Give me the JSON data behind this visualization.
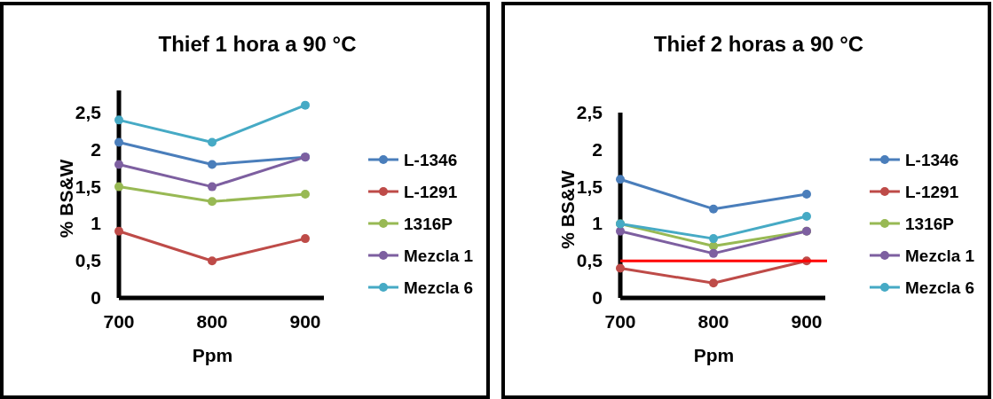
{
  "chart_data": [
    {
      "type": "line",
      "title": "Thief  1 hora  a 90 °C",
      "xlabel": "Ppm",
      "ylabel": "% BS&W",
      "x": [
        700,
        800,
        900
      ],
      "xlim": [
        700,
        920
      ],
      "xticks": [
        700,
        800,
        900
      ],
      "ylim": [
        0,
        2.8
      ],
      "yticks": [
        0,
        {
          "value": 0.5,
          "label": "0,5"
        },
        1,
        {
          "value": 1.5,
          "label": "1,5"
        },
        2,
        {
          "value": 2.5,
          "label": "2,5"
        }
      ],
      "marker": "circle",
      "legend": "right",
      "series": [
        {
          "name": "L-1346",
          "color": "#4a7ebb",
          "values": [
            2.1,
            1.8,
            1.9
          ]
        },
        {
          "name": "L-1291",
          "color": "#be4b48",
          "values": [
            0.9,
            0.5,
            0.8
          ]
        },
        {
          "name": "1316P",
          "color": "#98b954",
          "values": [
            1.5,
            1.3,
            1.4
          ]
        },
        {
          "name": "Mezcla 1",
          "color": "#7d5fa0",
          "values": [
            1.8,
            1.5,
            1.9
          ]
        },
        {
          "name": "Mezcla 6",
          "color": "#46aac5",
          "values": [
            2.4,
            2.1,
            2.6
          ]
        }
      ]
    },
    {
      "type": "line",
      "title": "Thief  2 horas  a 90 °C",
      "xlabel": "Ppm",
      "ylabel": "% BS&W",
      "x": [
        700,
        800,
        900
      ],
      "xlim": [
        700,
        920
      ],
      "xticks": [
        700,
        800,
        900
      ],
      "ylim": [
        0,
        2.5
      ],
      "yticks": [
        0,
        {
          "value": 0.5,
          "label": "0,5"
        },
        1,
        {
          "value": 1.5,
          "label": "1,5"
        },
        2,
        {
          "value": 2.5,
          "label": "2,5"
        }
      ],
      "marker": "circle",
      "legend": "right",
      "ref_lines": [
        {
          "axis": "y",
          "value": 0.5,
          "color": "#ff0000"
        }
      ],
      "series": [
        {
          "name": "L-1346",
          "color": "#4a7ebb",
          "values": [
            1.6,
            1.2,
            1.4
          ]
        },
        {
          "name": "L-1291",
          "color": "#be4b48",
          "values": [
            0.4,
            0.2,
            0.5
          ]
        },
        {
          "name": "1316P",
          "color": "#98b954",
          "values": [
            1.0,
            0.7,
            0.9
          ]
        },
        {
          "name": "Mezcla 1",
          "color": "#7d5fa0",
          "values": [
            0.9,
            0.6,
            0.9
          ]
        },
        {
          "name": "Mezcla 6",
          "color": "#46aac5",
          "values": [
            1.0,
            0.8,
            1.1
          ]
        }
      ]
    }
  ]
}
